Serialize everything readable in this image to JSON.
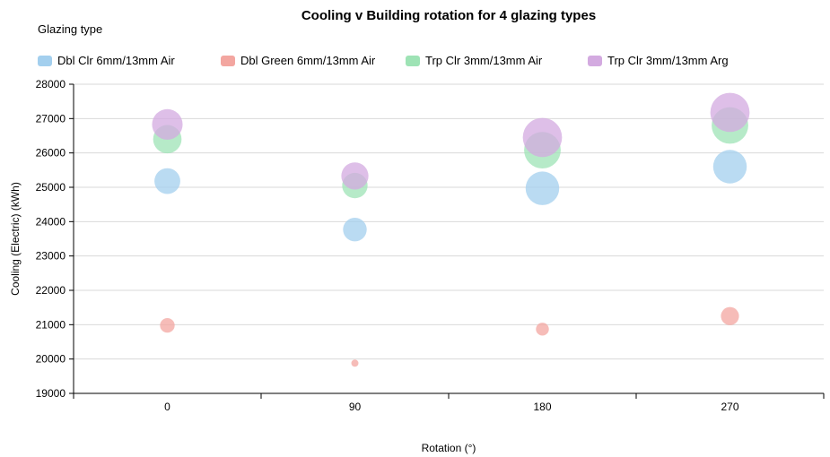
{
  "chart_data": {
    "type": "scatter",
    "subtype": "bubble",
    "title": "Cooling v Building rotation for 4 glazing types",
    "legend_title": "Glazing type",
    "legend_position": "top",
    "xlabel": "Rotation (°)",
    "ylabel": "Cooling (Electric) (kWh)",
    "x": [
      0,
      90,
      180,
      270
    ],
    "x_tick_labels": [
      "0",
      "90",
      "180",
      "270"
    ],
    "ylim": [
      19000,
      28000
    ],
    "y_ticks": [
      19000,
      20000,
      21000,
      22000,
      23000,
      24000,
      25000,
      26000,
      27000,
      28000
    ],
    "grid": true,
    "series": [
      {
        "name": "Dbl Clr 6mm/13mm Air",
        "color": "#a3cfee",
        "values": [
          25180,
          23770,
          24970,
          25600
        ],
        "bubble_size": [
          0.6,
          0.55,
          0.78,
          0.78
        ]
      },
      {
        "name": "Dbl Green 6mm/13mm Air",
        "color": "#f3a6a0",
        "values": [
          20980,
          19880,
          20870,
          21250
        ],
        "bubble_size": [
          0.34,
          0.15,
          0.3,
          0.42
        ]
      },
      {
        "name": "Trp Clr 3mm/13mm Air",
        "color": "#9ee3b5",
        "values": [
          26400,
          25050,
          26080,
          26800
        ],
        "bubble_size": [
          0.66,
          0.59,
          0.85,
          0.85
        ]
      },
      {
        "name": "Trp Clr 3mm/13mm Arg",
        "color": "#d3aae0",
        "values": [
          26830,
          25330,
          26450,
          27180
        ],
        "bubble_size": [
          0.71,
          0.63,
          0.91,
          0.91
        ]
      }
    ]
  }
}
